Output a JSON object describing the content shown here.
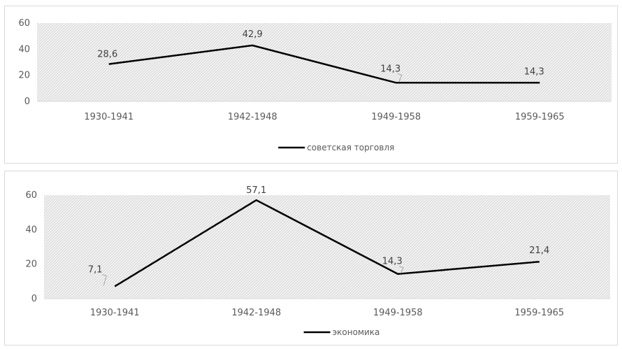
{
  "chart_data": [
    {
      "type": "line",
      "categories": [
        "1930-1941",
        "1942-1948",
        "1949-1958",
        "1959-1965"
      ],
      "series": [
        {
          "name": "советская торговля",
          "values": [
            28.6,
            42.9,
            14.3,
            14.3
          ],
          "labels": [
            "28,6",
            "42,9",
            "14,3",
            "14,3"
          ]
        }
      ],
      "yticks": [
        0,
        20,
        40,
        60
      ],
      "ylim": [
        0,
        60
      ],
      "grid": false,
      "legend_position": "bottom",
      "line_color": "#000000",
      "plot_fill": "hatched-gray"
    },
    {
      "type": "line",
      "categories": [
        "1930-1941",
        "1942-1948",
        "1949-1958",
        "1959-1965"
      ],
      "series": [
        {
          "name": "экономика",
          "values": [
            7.1,
            57.1,
            14.3,
            21.4
          ],
          "labels": [
            "7,1",
            "57,1",
            "14,3",
            "21,4"
          ]
        }
      ],
      "yticks": [
        0,
        20,
        40,
        60
      ],
      "ylim": [
        0,
        60
      ],
      "grid": false,
      "legend_position": "bottom",
      "line_color": "#000000",
      "plot_fill": "hatched-gray"
    }
  ]
}
